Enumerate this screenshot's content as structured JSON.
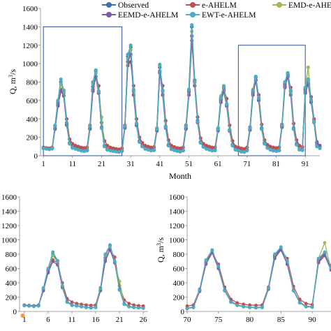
{
  "colors": {
    "Observed": "#3e6fb0",
    "e-AHELM": "#c0504d",
    "EMD-e-AHELM": "#9bbb59",
    "EEMD-e-AHELM": "#7b5aa6",
    "EWT-e-AHELM": "#4bacc6"
  },
  "chart_data": [
    {
      "type": "line",
      "xlabel": "Month",
      "ylabel_base": "Q, m",
      "ylabel_sup": "3",
      "ylabel_tail": "/s",
      "xlim": [
        0,
        96
      ],
      "ylim": [
        0,
        1600
      ],
      "xticks": [
        1,
        11,
        21,
        31,
        41,
        51,
        61,
        71,
        81,
        91
      ],
      "yticks": [
        0,
        200,
        400,
        600,
        800,
        1000,
        1200,
        1400,
        1600
      ],
      "legend": {
        "placement": "top",
        "entries": [
          "Observed",
          "e-AHELM",
          "EMD-e-AHELM",
          "EEMD-e-AHELM",
          "EWT-e-AHELM"
        ]
      },
      "zoom_boxes": [
        {
          "x": [
            1,
            28
          ],
          "y": [
            0,
            1400
          ]
        },
        {
          "x": [
            68,
            91
          ],
          "y": [
            0,
            1200
          ]
        }
      ],
      "x": [
        1,
        2,
        3,
        4,
        5,
        6,
        7,
        8,
        9,
        10,
        11,
        12,
        13,
        14,
        15,
        16,
        17,
        18,
        19,
        20,
        21,
        22,
        23,
        24,
        25,
        26,
        27,
        28,
        29,
        30,
        31,
        32,
        33,
        34,
        35,
        36,
        37,
        38,
        39,
        40,
        41,
        42,
        43,
        44,
        45,
        46,
        47,
        48,
        49,
        50,
        51,
        52,
        53,
        54,
        55,
        56,
        57,
        58,
        59,
        60,
        61,
        62,
        63,
        64,
        65,
        66,
        67,
        68,
        69,
        70,
        71,
        72,
        73,
        74,
        75,
        76,
        77,
        78,
        79,
        80,
        81,
        82,
        83,
        84,
        85,
        86,
        87,
        88,
        89,
        90,
        91,
        92,
        93,
        94,
        95,
        96
      ],
      "series": [
        {
          "name": "Observed",
          "values": [
            85,
            80,
            75,
            80,
            300,
            580,
            800,
            700,
            350,
            140,
            90,
            80,
            70,
            60,
            55,
            60,
            300,
            750,
            920,
            700,
            300,
            110,
            70,
            60,
            55,
            50,
            45,
            55,
            310,
            1080,
            1180,
            700,
            350,
            160,
            110,
            80,
            70,
            60,
            65,
            280,
            960,
            700,
            320,
            120,
            75,
            65,
            55,
            50,
            60,
            300,
            700,
            1400,
            800,
            380,
            150,
            100,
            80,
            70,
            60,
            62,
            280,
            620,
            740,
            560,
            280,
            120,
            70,
            60,
            50,
            45,
            60,
            290,
            700,
            850,
            620,
            300,
            140,
            90,
            70,
            60,
            55,
            60,
            320,
            780,
            880,
            700,
            300,
            130,
            70,
            65,
            720,
            820,
            600,
            380,
            120,
            90
          ]
        },
        {
          "name": "e-AHELM",
          "values": [
            90,
            85,
            80,
            90,
            320,
            560,
            720,
            680,
            400,
            180,
            130,
            110,
            100,
            90,
            85,
            90,
            330,
            720,
            860,
            760,
            360,
            160,
            110,
            90,
            80,
            75,
            70,
            80,
            330,
            980,
            1020,
            760,
            400,
            200,
            140,
            110,
            100,
            90,
            95,
            300,
            900,
            760,
            380,
            170,
            110,
            95,
            85,
            80,
            90,
            330,
            690,
            1250,
            820,
            420,
            190,
            130,
            110,
            100,
            90,
            90,
            300,
            600,
            720,
            620,
            330,
            160,
            100,
            90,
            80,
            75,
            90,
            310,
            680,
            820,
            660,
            340,
            170,
            120,
            100,
            90,
            85,
            90,
            340,
            760,
            860,
            740,
            350,
            170,
            110,
            95,
            700,
            800,
            640,
            400,
            150,
            110
          ]
        },
        {
          "name": "EMD-e-AHELM",
          "values": [
            80,
            75,
            70,
            80,
            310,
            600,
            780,
            690,
            330,
            130,
            85,
            75,
            65,
            55,
            50,
            55,
            320,
            780,
            900,
            680,
            420,
            100,
            65,
            55,
            50,
            45,
            40,
            50,
            320,
            1050,
            1150,
            690,
            340,
            150,
            100,
            75,
            65,
            55,
            60,
            300,
            980,
            690,
            310,
            110,
            70,
            60,
            50,
            45,
            55,
            310,
            720,
            1350,
            790,
            370,
            140,
            95,
            75,
            65,
            55,
            58,
            300,
            650,
            760,
            550,
            270,
            110,
            65,
            55,
            45,
            40,
            55,
            300,
            720,
            860,
            610,
            290,
            130,
            85,
            65,
            55,
            50,
            55,
            330,
            800,
            900,
            690,
            290,
            120,
            65,
            60,
            740,
            960,
            590,
            370,
            110,
            85
          ]
        },
        {
          "name": "EEMD-e-AHELM",
          "values": [
            82,
            78,
            72,
            78,
            290,
            540,
            700,
            650,
            340,
            135,
            88,
            78,
            68,
            58,
            53,
            58,
            290,
            700,
            860,
            680,
            310,
            105,
            68,
            58,
            53,
            48,
            43,
            53,
            300,
            1020,
            1100,
            660,
            330,
            150,
            105,
            78,
            68,
            58,
            62,
            270,
            920,
            660,
            300,
            115,
            72,
            62,
            53,
            48,
            58,
            290,
            660,
            1300,
            760,
            360,
            145,
            98,
            78,
            68,
            58,
            60,
            270,
            580,
            700,
            540,
            270,
            115,
            68,
            58,
            48,
            43,
            58,
            280,
            660,
            820,
            600,
            290,
            135,
            88,
            68,
            58,
            53,
            58,
            310,
            740,
            860,
            660,
            290,
            125,
            68,
            62,
            680,
            780,
            580,
            360,
            140,
            110
          ]
        },
        {
          "name": "EWT-e-AHELM",
          "values": [
            80,
            76,
            70,
            76,
            330,
            600,
            830,
            710,
            360,
            130,
            85,
            75,
            65,
            55,
            50,
            55,
            320,
            800,
            930,
            700,
            300,
            100,
            65,
            55,
            50,
            45,
            40,
            50,
            320,
            1100,
            1200,
            720,
            350,
            150,
            100,
            75,
            65,
            55,
            60,
            290,
            990,
            710,
            310,
            110,
            70,
            60,
            50,
            45,
            55,
            320,
            720,
            1420,
            810,
            370,
            140,
            95,
            75,
            65,
            55,
            58,
            290,
            630,
            750,
            560,
            280,
            110,
            65,
            55,
            45,
            40,
            55,
            300,
            710,
            860,
            630,
            290,
            130,
            85,
            65,
            55,
            50,
            55,
            330,
            800,
            900,
            710,
            290,
            120,
            65,
            60,
            740,
            830,
            610,
            360,
            100,
            80
          ]
        }
      ]
    },
    {
      "type": "line",
      "xlim": [
        0,
        27
      ],
      "ylim": [
        0,
        1600
      ],
      "xticks": [
        1,
        6,
        11,
        16,
        21,
        26
      ],
      "yticks": [
        0,
        200,
        400,
        600,
        800,
        1000,
        1200,
        1400,
        1600
      ],
      "x_from": 1,
      "x_to": 26
    },
    {
      "type": "line",
      "ylabel_base": "Q, m",
      "ylabel_sup": "3",
      "ylabel_tail": "/s",
      "xlim": [
        70,
        93
      ],
      "ylim": [
        0,
        1600
      ],
      "xticks": [
        70,
        75,
        80,
        85,
        90
      ],
      "yticks": [
        0,
        200,
        400,
        600,
        800,
        1000,
        1200,
        1400,
        1600
      ],
      "x_from": 70,
      "x_to": 93
    }
  ]
}
